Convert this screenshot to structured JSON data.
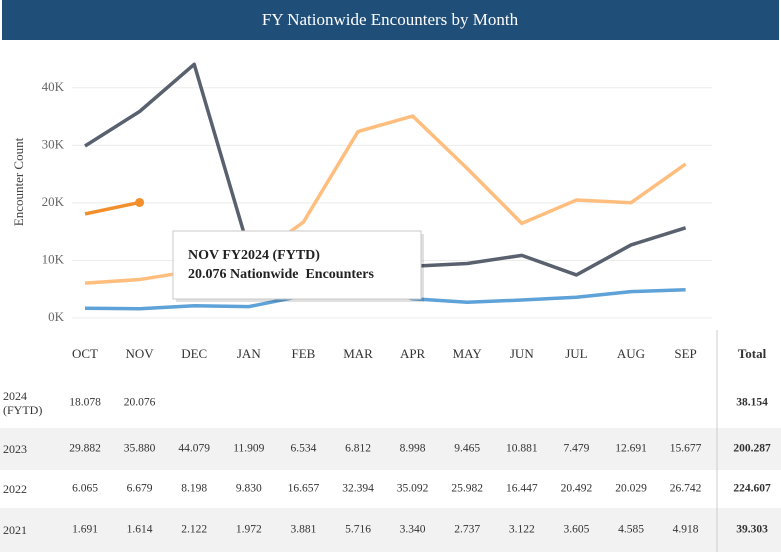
{
  "chart_data": {
    "type": "line",
    "title": "FY Nationwide Encounters by Month",
    "y_label": "Encounter Count",
    "categories": [
      "OCT",
      "NOV",
      "DEC",
      "JAN",
      "FEB",
      "MAR",
      "APR",
      "MAY",
      "JUN",
      "JUL",
      "AUG",
      "SEP"
    ],
    "total_label": "Total",
    "series": [
      {
        "name": "2024 (FYTD)",
        "color": "#f28e2b",
        "values": [
          18.078,
          20.076,
          null,
          null,
          null,
          null,
          null,
          null,
          null,
          null,
          null,
          null
        ],
        "value_labels": [
          "18.078",
          "20.076",
          null,
          null,
          null,
          null,
          null,
          null,
          null,
          null,
          null,
          null
        ],
        "total": "38.154"
      },
      {
        "name": "2023",
        "color": "#59606e",
        "values": [
          29.882,
          35.88,
          44.079,
          11.909,
          6.534,
          6.812,
          8.998,
          9.465,
          10.881,
          7.479,
          12.691,
          15.677
        ],
        "value_labels": [
          "29.882",
          "35.880",
          "44.079",
          "11.909",
          "6.534",
          "6.812",
          "8.998",
          "9.465",
          "10.881",
          "7.479",
          "12.691",
          "15.677"
        ],
        "total": "200.287"
      },
      {
        "name": "2022",
        "color": "#ffbe7d",
        "values": [
          6.065,
          6.679,
          8.198,
          9.83,
          16.657,
          32.394,
          35.092,
          25.982,
          16.447,
          20.492,
          20.029,
          26.742
        ],
        "value_labels": [
          "6.065",
          "6.679",
          "8.198",
          "9.830",
          "16.657",
          "32.394",
          "35.092",
          "25.982",
          "16.447",
          "20.492",
          "20.029",
          "26.742"
        ],
        "total": "224.607"
      },
      {
        "name": "2021",
        "color": "#5fa2d8",
        "values": [
          1.691,
          1.614,
          2.122,
          1.972,
          3.881,
          5.716,
          3.34,
          2.737,
          3.122,
          3.605,
          4.585,
          4.918
        ],
        "value_labels": [
          "1.691",
          "1.614",
          "2.122",
          "1.972",
          "3.881",
          "5.716",
          "3.340",
          "2.737",
          "3.122",
          "3.605",
          "4.585",
          "4.918"
        ],
        "total": "39.303"
      }
    ],
    "ylim": [
      0,
      45
    ],
    "yticks": [
      {
        "value": 0,
        "label": "0K"
      },
      {
        "value": 10,
        "label": "10K"
      },
      {
        "value": 20,
        "label": "20K"
      },
      {
        "value": 30,
        "label": "30K"
      },
      {
        "value": 40,
        "label": "40K"
      }
    ],
    "grid": true,
    "tooltip": {
      "title": "NOV FY2024 (FYTD)",
      "text": "20.076 Nationwide  Encounters"
    }
  }
}
